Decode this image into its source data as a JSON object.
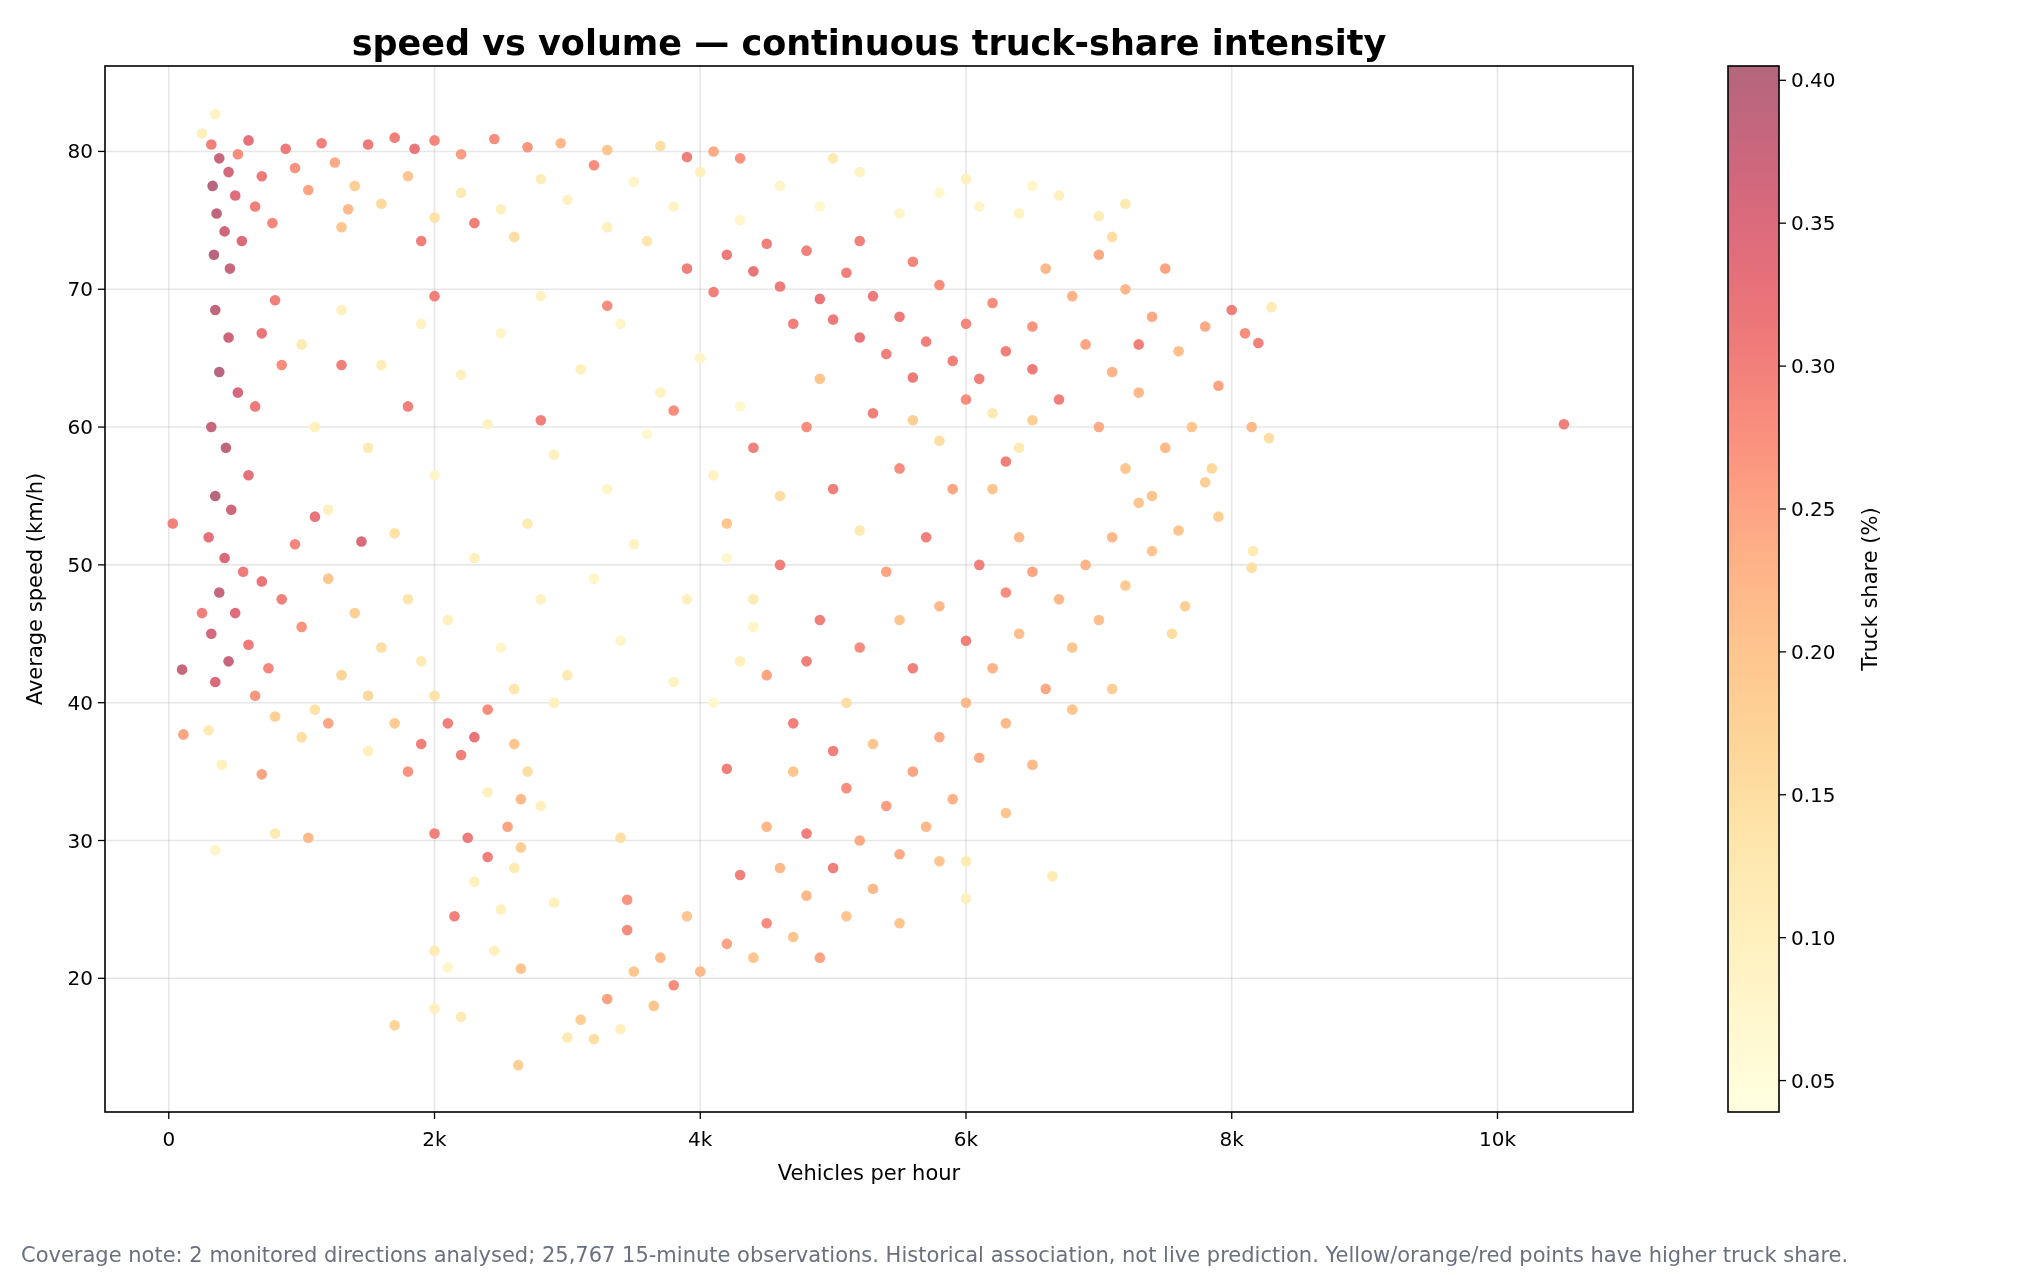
{
  "chart_data": {
    "type": "scatter",
    "title": "speed vs volume — continuous truck-share intensity",
    "xlabel": "Vehicles per hour",
    "ylabel": "Average speed (km/h)",
    "clabel": "Truck share (%)",
    "annotations": [
      "Coverage note: 2 monitored directions analysed; 25,767 15-minute observations. Historical association, not live prediction. Yellow/orange/red points have higher truck share."
    ],
    "x": [
      320,
      380,
      450,
      330,
      500,
      360,
      420,
      550,
      340,
      460,
      600,
      520,
      700,
      650,
      780,
      880,
      950,
      1050,
      1150,
      1250,
      1350,
      1500,
      1700,
      1850,
      2000,
      2200,
      2450,
      2700,
      2950,
      3300,
      3700,
      4100,
      4300,
      250,
      350,
      1400,
      1600,
      1800,
      2000,
      2200,
      2500,
      2800,
      3000,
      3300,
      3500,
      3800,
      4000,
      4300,
      4600,
      4900,
      5200,
      5500,
      5800,
      6100,
      6400,
      6700,
      7000,
      7200,
      5000,
      6000,
      1300,
      2600,
      3600,
      6500,
      7100,
      2300,
      3200,
      1900,
      3900,
      4200,
      4400,
      4600,
      4800,
      4900,
      5000,
      5100,
      5200,
      5300,
      5400,
      5500,
      5600,
      5700,
      5800,
      5900,
      6000,
      6200,
      6300,
      6500,
      4700,
      5200,
      5600,
      6100,
      4500,
      3900,
      4100,
      6600,
      6800,
      7000,
      7200,
      7400,
      7500,
      6900,
      7100,
      7300,
      7600,
      7800,
      7900,
      7700,
      7500,
      7200,
      7800,
      7400,
      7000,
      6700,
      6500,
      7300,
      8000,
      8100,
      8200,
      8300,
      8150,
      8280,
      8160,
      8150,
      7900,
      7600,
      7650,
      7550,
      7850,
      6500,
      6200,
      6400,
      350,
      450,
      380,
      520,
      320,
      430,
      600,
      350,
      470,
      700,
      850,
      800,
      650,
      300,
      420,
      560,
      380,
      700,
      500,
      850,
      320,
      600,
      450,
      750,
      950,
      1100,
      1000,
      350,
      250,
      100,
      650,
      1200,
      1400,
      1600,
      1300,
      1800,
      1500,
      1100,
      1900,
      2000,
      1700,
      1450,
      1200,
      1000,
      800,
      300,
      400,
      350,
      800,
      1050,
      700,
      1500,
      110,
      1000,
      1300,
      1600,
      1900,
      2200,
      2500,
      2800,
      3100,
      3400,
      3700,
      4000,
      4300,
      1100,
      1500,
      2000,
      2400,
      2900,
      3300,
      3600,
      4100,
      1200,
      1700,
      2300,
      2700,
      3200,
      3500,
      3900,
      4200,
      4400,
      2100,
      2500,
      2800,
      3000,
      3400,
      3800,
      4300,
      2600,
      4100,
      1800,
      2800,
      1300,
      3300,
      3800,
      2000,
      2100,
      2300,
      2400,
      2200,
      1900,
      2000,
      2250,
      2400,
      1800,
      2150,
      2600,
      2650,
      2550,
      2600,
      2500,
      2450,
      2650,
      2700,
      2400,
      2300,
      2100,
      2000,
      2650,
      2000,
      1700,
      2200,
      2900,
      2800,
      2900,
      3000,
      3200,
      3100,
      3300,
      3400,
      3450,
      3500,
      3650,
      3700,
      3800,
      3450,
      3900,
      3400,
      4000,
      4200,
      4400,
      4500,
      4700,
      4800,
      4900,
      5000,
      5100,
      5200,
      5300,
      5400,
      5500,
      5600,
      5700,
      5800,
      5900,
      6000,
      6100,
      6200,
      6300,
      6400,
      6600,
      6700,
      6800,
      6900,
      7000,
      7100,
      7200,
      7300,
      7400,
      6500,
      6800,
      7100,
      6300,
      6000,
      5500,
      4800,
      5100,
      4600,
      4300,
      4500,
      4700,
      5000,
      6650,
      6000,
      5800,
      4200,
      4400,
      4800,
      5000,
      5300,
      5500,
      5700,
      5900,
      6100,
      6300,
      4600,
      4900,
      5200,
      5400,
      5600,
      5800,
      6000,
      4500,
      4700,
      5100,
      5300,
      4600,
      5200,
      5800,
      6200,
      6400,
      6500,
      4200,
      4900,
      5600,
      6000,
      5500,
      6300,
      4400,
      4800,
      10500,
      30,
      2630
    ],
    "values": [
      80.5,
      79.5,
      78.5,
      77.5,
      76.8,
      75.5,
      74.2,
      73.5,
      72.5,
      71.5,
      80.8,
      79.8,
      78.2,
      76,
      74.8,
      80.2,
      78.8,
      77.2,
      80.6,
      79.2,
      75.8,
      80.5,
      81,
      80.2,
      80.8,
      79.8,
      80.9,
      80.3,
      80.6,
      80.1,
      80.4,
      80,
      79.5,
      81.3,
      82.7,
      77.5,
      76.2,
      78.2,
      75.2,
      77,
      75.8,
      78,
      76.5,
      74.5,
      77.8,
      76,
      78.5,
      75,
      77.5,
      76,
      78.5,
      75.5,
      77,
      76,
      75.5,
      76.8,
      75.3,
      76.2,
      79.5,
      78,
      74.5,
      73.8,
      73.5,
      77.5,
      73.8,
      74.8,
      79,
      73.5,
      79.6,
      72.5,
      71.3,
      70.2,
      72.8,
      69.3,
      67.8,
      71.2,
      66.5,
      69.5,
      65.3,
      68,
      72,
      66.2,
      70.3,
      64.8,
      67.5,
      69,
      65.5,
      67.3,
      67.5,
      73.5,
      63.6,
      63.5,
      73.3,
      71.5,
      69.8,
      71.5,
      69.5,
      72.5,
      70,
      68,
      71.5,
      66,
      64,
      62.5,
      65.5,
      67.3,
      63,
      60,
      58.5,
      57,
      56,
      55,
      60,
      62,
      64.2,
      66,
      68.5,
      66.8,
      66.1,
      68.7,
      60,
      59.2,
      51,
      49.8,
      53.5,
      52.5,
      47,
      45,
      57,
      60.5,
      61,
      58.5,
      68.5,
      66.5,
      64,
      62.5,
      60,
      58.5,
      56.5,
      55,
      54,
      66.8,
      64.5,
      69.2,
      61.5,
      52,
      50.5,
      49.5,
      48,
      48.8,
      46.5,
      47.5,
      45,
      44.2,
      43,
      42.5,
      51.5,
      53.5,
      45.5,
      41.5,
      46.5,
      42.4,
      40.5,
      49,
      46.5,
      44,
      42,
      47.5,
      40.5,
      39.5,
      43,
      40.5,
      38.5,
      51.7,
      38.5,
      37.5,
      39,
      38,
      35.5,
      29.3,
      30.5,
      30.2,
      34.8,
      36.5,
      37.7,
      66,
      68.5,
      64.5,
      67.5,
      63.8,
      66.8,
      69.5,
      64.2,
      67.5,
      62.5,
      65,
      61.5,
      60,
      58.5,
      56.5,
      60.2,
      58,
      55.5,
      59.5,
      56.5,
      54,
      52.3,
      50.5,
      53,
      49,
      51.5,
      47.5,
      50.5,
      45.5,
      46,
      44,
      47.5,
      42,
      44.5,
      41.5,
      43,
      41,
      40,
      61.5,
      60.5,
      64.5,
      68.8,
      61.2,
      69.5,
      38.5,
      37.5,
      39.5,
      36.2,
      37,
      30.5,
      30.2,
      28.8,
      35,
      24.5,
      37,
      33,
      31,
      28,
      25,
      22,
      29.5,
      35,
      33.5,
      27,
      20.8,
      22,
      20.7,
      17.8,
      16.6,
      17.2,
      25.5,
      32.5,
      40,
      15.7,
      15.6,
      17,
      18.5,
      16.3,
      23.5,
      20.5,
      18,
      21.5,
      19.5,
      25.7,
      24.5,
      30.2,
      20.5,
      22.5,
      21.5,
      24,
      23,
      26,
      21.5,
      28,
      24.5,
      30,
      26.5,
      32.5,
      29,
      35,
      31,
      37.5,
      33,
      40,
      36,
      42.5,
      38.5,
      45,
      41,
      47.5,
      44,
      50,
      46,
      52,
      48.5,
      54.5,
      51,
      35.5,
      39.5,
      41,
      32,
      28.5,
      24,
      30.5,
      33.8,
      28,
      27.5,
      31,
      35,
      36.5,
      27.4,
      25.8,
      28.5,
      35.2,
      58.5,
      60,
      55.5,
      61,
      57,
      52,
      55.5,
      50,
      48,
      50,
      46,
      44,
      49.5,
      42.5,
      47,
      44.5,
      42,
      38.5,
      40,
      37,
      55,
      52.5,
      59,
      55.5,
      52,
      49.5,
      53,
      63.5,
      60.5,
      62,
      46,
      57.5,
      47.5,
      43,
      60.2,
      53,
      13.7
    ],
    "cvalues": [
      0.3,
      0.38,
      0.36,
      0.4,
      0.34,
      0.39,
      0.37,
      0.35,
      0.4,
      0.38,
      0.33,
      0.28,
      0.31,
      0.3,
      0.29,
      0.31,
      0.27,
      0.25,
      0.3,
      0.24,
      0.22,
      0.31,
      0.3,
      0.32,
      0.29,
      0.26,
      0.28,
      0.27,
      0.22,
      0.2,
      0.15,
      0.24,
      0.27,
      0.1,
      0.09,
      0.18,
      0.16,
      0.2,
      0.14,
      0.12,
      0.1,
      0.11,
      0.09,
      0.1,
      0.08,
      0.09,
      0.1,
      0.08,
      0.08,
      0.07,
      0.09,
      0.08,
      0.07,
      0.08,
      0.09,
      0.1,
      0.11,
      0.12,
      0.12,
      0.1,
      0.2,
      0.15,
      0.13,
      0.08,
      0.15,
      0.3,
      0.28,
      0.3,
      0.3,
      0.31,
      0.32,
      0.31,
      0.3,
      0.32,
      0.31,
      0.3,
      0.32,
      0.31,
      0.3,
      0.31,
      0.29,
      0.3,
      0.28,
      0.3,
      0.29,
      0.28,
      0.3,
      0.27,
      0.3,
      0.3,
      0.31,
      0.3,
      0.3,
      0.3,
      0.3,
      0.22,
      0.23,
      0.24,
      0.22,
      0.24,
      0.25,
      0.25,
      0.23,
      0.22,
      0.21,
      0.24,
      0.25,
      0.2,
      0.22,
      0.2,
      0.18,
      0.2,
      0.24,
      0.3,
      0.31,
      0.3,
      0.3,
      0.28,
      0.3,
      0.12,
      0.22,
      0.15,
      0.12,
      0.15,
      0.18,
      0.2,
      0.18,
      0.15,
      0.16,
      0.18,
      0.12,
      0.12,
      0.39,
      0.37,
      0.4,
      0.36,
      0.38,
      0.39,
      0.33,
      0.4,
      0.37,
      0.32,
      0.28,
      0.3,
      0.31,
      0.33,
      0.35,
      0.31,
      0.38,
      0.32,
      0.34,
      0.3,
      0.36,
      0.31,
      0.38,
      0.29,
      0.29,
      0.32,
      0.27,
      0.35,
      0.3,
      0.38,
      0.27,
      0.2,
      0.18,
      0.15,
      0.17,
      0.13,
      0.16,
      0.14,
      0.12,
      0.14,
      0.19,
      0.35,
      0.25,
      0.15,
      0.18,
      0.12,
      0.1,
      0.08,
      0.12,
      0.22,
      0.25,
      0.1,
      0.25,
      0.12,
      0.1,
      0.11,
      0.09,
      0.1,
      0.08,
      0.09,
      0.1,
      0.08,
      0.09,
      0.08,
      0.07,
      0.1,
      0.12,
      0.08,
      0.09,
      0.1,
      0.08,
      0.07,
      0.09,
      0.1,
      0.14,
      0.1,
      0.12,
      0.08,
      0.09,
      0.1,
      0.07,
      0.08,
      0.1,
      0.08,
      0.09,
      0.12,
      0.08,
      0.09,
      0.1,
      0.13,
      0.07,
      0.3,
      0.3,
      0.3,
      0.28,
      0.28,
      0.3,
      0.3,
      0.32,
      0.28,
      0.3,
      0.3,
      0.3,
      0.31,
      0.3,
      0.27,
      0.3,
      0.2,
      0.22,
      0.25,
      0.12,
      0.1,
      0.1,
      0.18,
      0.15,
      0.1,
      0.1,
      0.08,
      0.12,
      0.2,
      0.1,
      0.17,
      0.12,
      0.1,
      0.1,
      0.1,
      0.12,
      0.15,
      0.18,
      0.25,
      0.1,
      0.28,
      0.2,
      0.2,
      0.22,
      0.28,
      0.27,
      0.2,
      0.15,
      0.22,
      0.25,
      0.2,
      0.28,
      0.2,
      0.22,
      0.25,
      0.3,
      0.2,
      0.24,
      0.22,
      0.26,
      0.24,
      0.25,
      0.22,
      0.24,
      0.23,
      0.22,
      0.24,
      0.23,
      0.22,
      0.21,
      0.24,
      0.22,
      0.2,
      0.23,
      0.21,
      0.22,
      0.19,
      0.2,
      0.2,
      0.22,
      0.2,
      0.18,
      0.2,
      0.12,
      0.2,
      0.3,
      0.28,
      0.22,
      0.3,
      0.22,
      0.2,
      0.3,
      0.12,
      0.1,
      0.2,
      0.3,
      0.3,
      0.28,
      0.3,
      0.3,
      0.28,
      0.3,
      0.25,
      0.3,
      0.28,
      0.3,
      0.3,
      0.28,
      0.25,
      0.3,
      0.22,
      0.3,
      0.25,
      0.3,
      0.15,
      0.2,
      0.15,
      0.12,
      0.15,
      0.2,
      0.22,
      0.25,
      0.2,
      0.2,
      0.18,
      0.28,
      0.2,
      0.3,
      0.12,
      0.3,
      0.3,
      0.3,
      0.18
    ],
    "xlim": [
      -480,
      11020
    ],
    "xticks": [
      0,
      {
        "value": 2000,
        "label": "2k"
      },
      {
        "value": 4000,
        "label": "4k"
      },
      {
        "value": 6000,
        "label": "6k"
      },
      {
        "value": 8000,
        "label": "8k"
      },
      {
        "value": 10000,
        "label": "10k"
      }
    ],
    "ylim": [
      10.3,
      86.2
    ],
    "yticks": [
      20,
      30,
      40,
      50,
      60,
      70,
      80
    ],
    "clim": [
      0.039,
      0.405
    ],
    "cticks": [
      0.05,
      {
        "value": 0.1,
        "label": "0.10"
      },
      0.15,
      {
        "value": 0.2,
        "label": "0.20"
      },
      0.25,
      {
        "value": 0.3,
        "label": "0.30"
      },
      0.35,
      {
        "value": 0.4,
        "label": "0.40"
      }
    ],
    "grid": true,
    "marker": "circle"
  }
}
